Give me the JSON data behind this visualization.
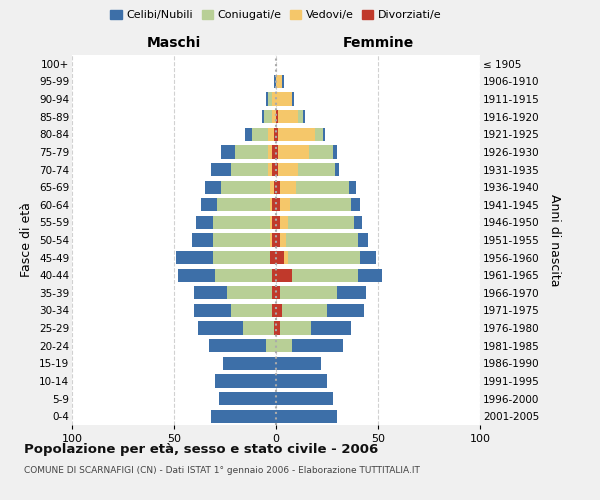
{
  "age_groups": [
    "0-4",
    "5-9",
    "10-14",
    "15-19",
    "20-24",
    "25-29",
    "30-34",
    "35-39",
    "40-44",
    "45-49",
    "50-54",
    "55-59",
    "60-64",
    "65-69",
    "70-74",
    "75-79",
    "80-84",
    "85-89",
    "90-94",
    "95-99",
    "100+"
  ],
  "birth_years": [
    "2001-2005",
    "1996-2000",
    "1991-1995",
    "1986-1990",
    "1981-1985",
    "1976-1980",
    "1971-1975",
    "1966-1970",
    "1961-1965",
    "1956-1960",
    "1951-1955",
    "1946-1950",
    "1941-1945",
    "1936-1940",
    "1931-1935",
    "1926-1930",
    "1921-1925",
    "1916-1920",
    "1911-1915",
    "1906-1910",
    "≤ 1905"
  ],
  "maschi": {
    "celibi": [
      32,
      28,
      30,
      26,
      28,
      22,
      18,
      16,
      18,
      18,
      10,
      8,
      8,
      8,
      10,
      7,
      3,
      1,
      1,
      1,
      0
    ],
    "coniugati": [
      0,
      0,
      0,
      0,
      5,
      15,
      20,
      22,
      28,
      28,
      28,
      28,
      26,
      24,
      18,
      16,
      8,
      4,
      2,
      0,
      0
    ],
    "vedovi": [
      0,
      0,
      0,
      0,
      0,
      0,
      0,
      0,
      0,
      0,
      1,
      1,
      1,
      2,
      2,
      2,
      3,
      2,
      2,
      0,
      0
    ],
    "divorziati": [
      0,
      0,
      0,
      0,
      0,
      1,
      2,
      2,
      2,
      3,
      2,
      2,
      2,
      1,
      2,
      2,
      1,
      0,
      0,
      0,
      0
    ]
  },
  "femmine": {
    "nubili": [
      30,
      28,
      25,
      22,
      25,
      20,
      18,
      14,
      12,
      8,
      5,
      4,
      4,
      3,
      2,
      2,
      1,
      1,
      1,
      1,
      0
    ],
    "coniugate": [
      0,
      0,
      0,
      0,
      8,
      15,
      22,
      28,
      32,
      35,
      35,
      32,
      30,
      26,
      18,
      12,
      4,
      2,
      0,
      0,
      0
    ],
    "vedove": [
      0,
      0,
      0,
      0,
      0,
      0,
      0,
      0,
      0,
      2,
      3,
      4,
      5,
      8,
      10,
      15,
      18,
      10,
      8,
      3,
      0
    ],
    "divorziate": [
      0,
      0,
      0,
      0,
      0,
      2,
      3,
      2,
      8,
      4,
      2,
      2,
      2,
      2,
      1,
      1,
      1,
      1,
      0,
      0,
      0
    ]
  },
  "colors": {
    "celibi": "#3d6fa8",
    "coniugati": "#b8cf96",
    "vedovi": "#f5c76a",
    "divorziati": "#c0392b"
  },
  "title": "Popolazione per età, sesso e stato civile - 2006",
  "subtitle": "COMUNE DI SCARNAFIGI (CN) - Dati ISTAT 1° gennaio 2006 - Elaborazione TUTTITALIA.IT",
  "xlim": 100,
  "xlabel_left": "Maschi",
  "xlabel_right": "Femmine",
  "ylabel_left": "Fasce di età",
  "ylabel_right": "Anni di nascita",
  "legend_labels": [
    "Celibi/Nubili",
    "Coniugati/e",
    "Vedovi/e",
    "Divorziati/e"
  ],
  "bg_color": "#f0f0f0",
  "plot_bg": "#ffffff"
}
